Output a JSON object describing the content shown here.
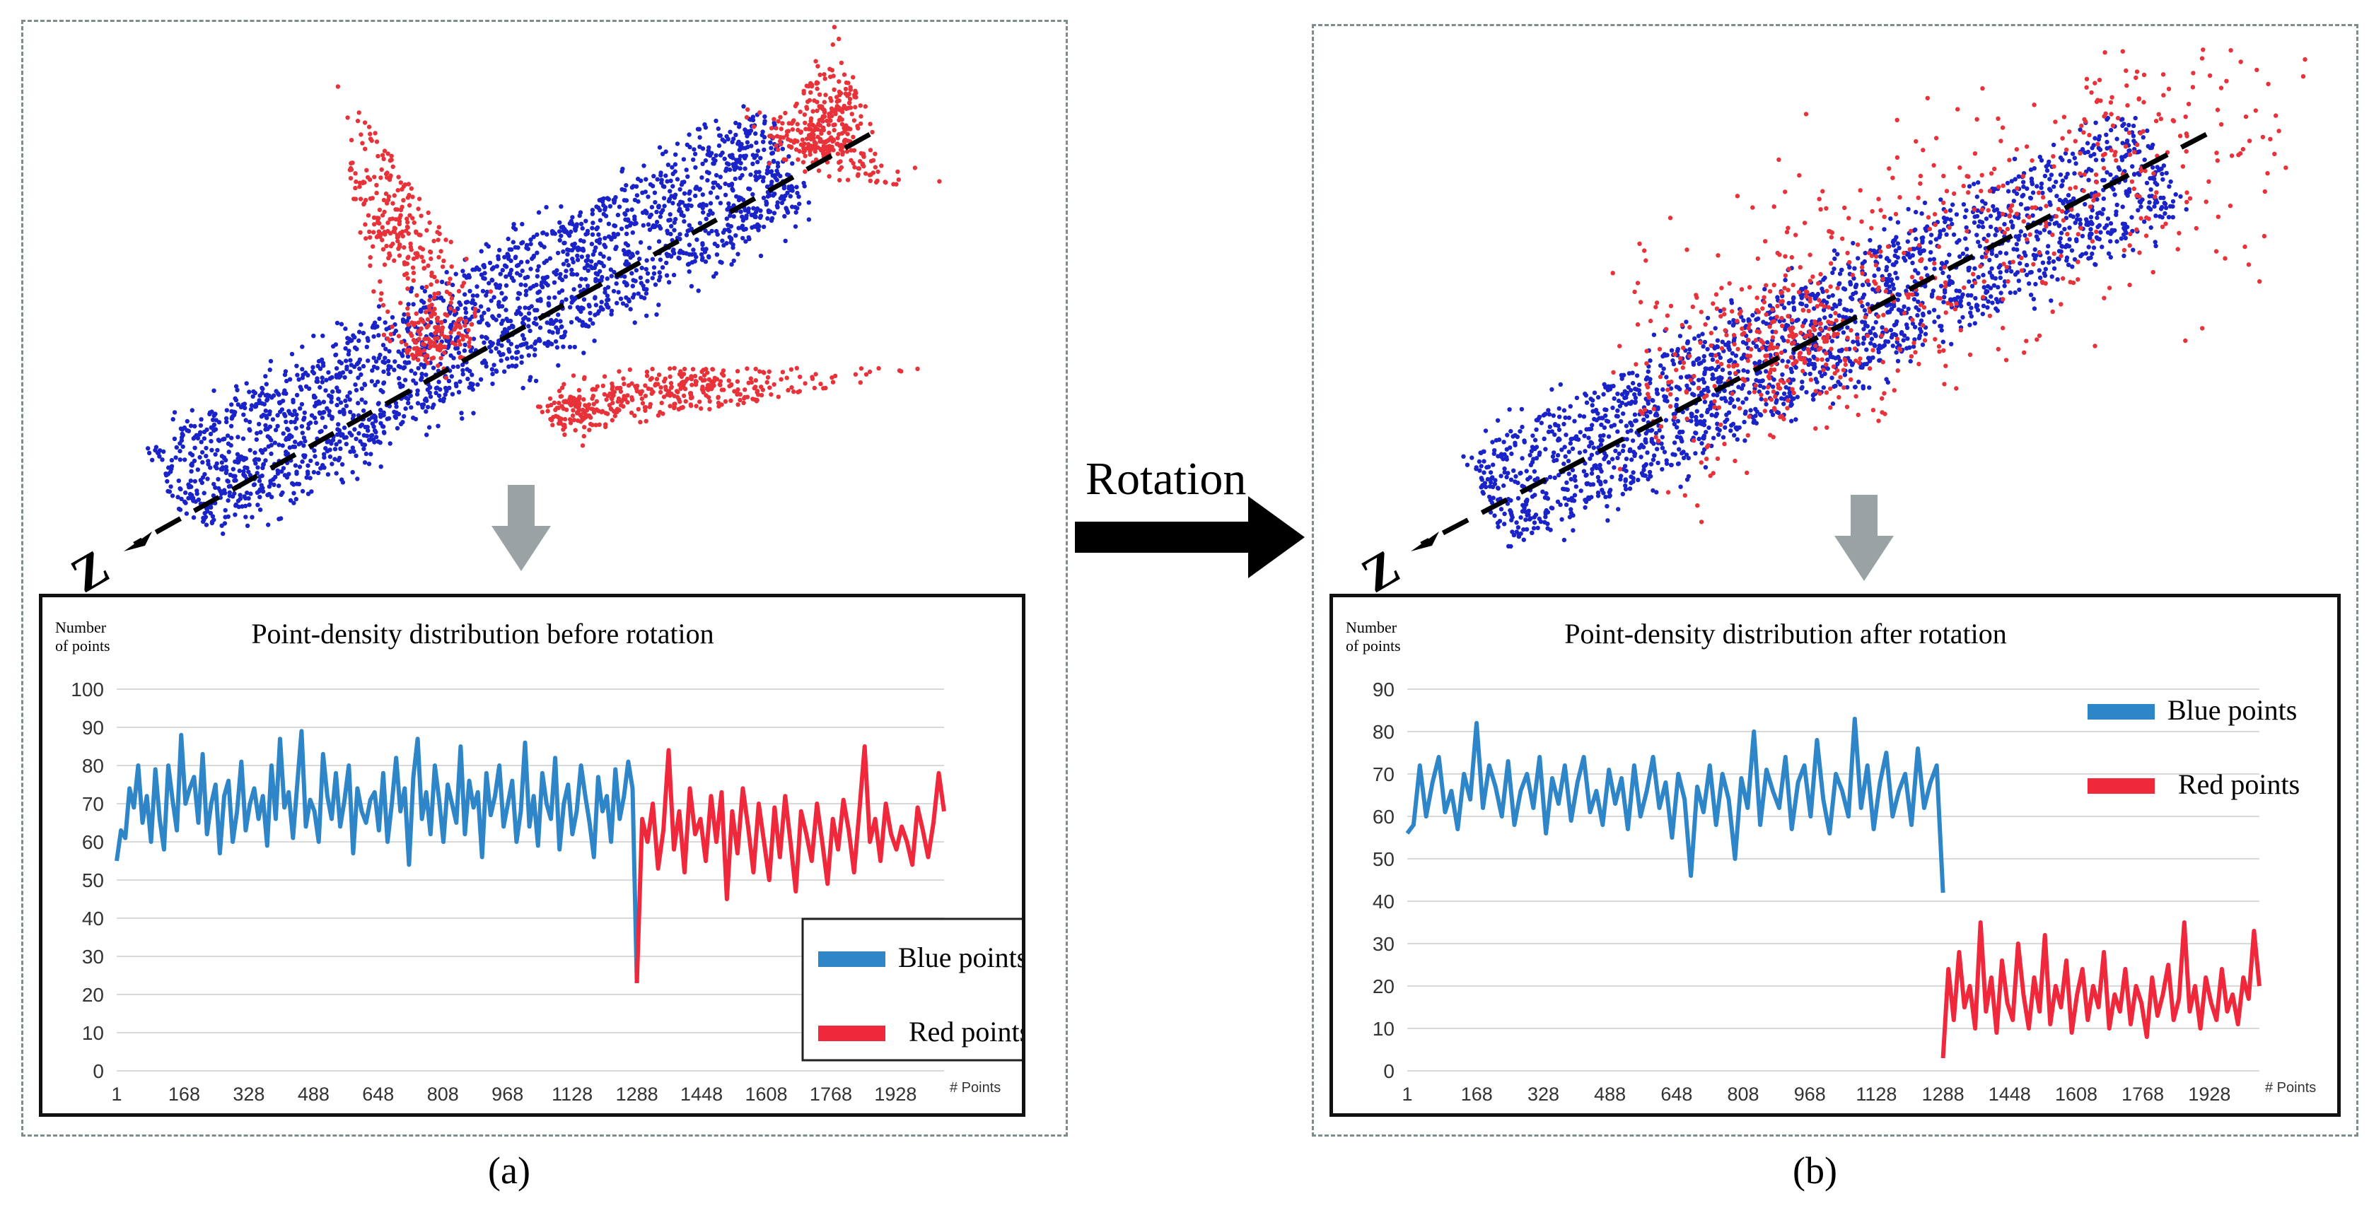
{
  "figure": {
    "rotation_label": "Rotation",
    "caption_a": "(a)",
    "caption_b": "(b)",
    "axis_letter": "Z"
  },
  "colors": {
    "blue_points": "#1a23c8",
    "red_points": "#e8323a",
    "blue_series": "#2e86c8",
    "red_series": "#f0283c",
    "down_arrow": "#9aa2a4",
    "panel_border": "#7f8c8c"
  },
  "chart_data": [
    {
      "type": "line",
      "title": "Point-density distribution before rotation",
      "ylabel": "Number of points",
      "xlabel": "# Points",
      "ylim": [
        0,
        100
      ],
      "yticks": [
        "0",
        "10",
        "20",
        "30",
        "40",
        "50",
        "60",
        "70",
        "80",
        "90",
        "100"
      ],
      "xticks": [
        "1",
        "168",
        "328",
        "488",
        "648",
        "808",
        "968",
        "1128",
        "1288",
        "1448",
        "1608",
        "1768",
        "1928"
      ],
      "xrange": [
        1,
        2048
      ],
      "legend": {
        "position": "bottom-right",
        "entries": [
          "Blue points",
          "Red points"
        ]
      },
      "series": [
        {
          "name": "Blue points",
          "x_start": 1,
          "x_end": 1288,
          "values": [
            55,
            63,
            61,
            74,
            69,
            80,
            65,
            72,
            60,
            79,
            66,
            58,
            80,
            71,
            63,
            88,
            70,
            74,
            77,
            65,
            83,
            62,
            70,
            75,
            57,
            72,
            76,
            60,
            68,
            81,
            63,
            70,
            74,
            66,
            72,
            59,
            80,
            66,
            87,
            69,
            73,
            61,
            75,
            89,
            64,
            71,
            68,
            60,
            83,
            72,
            66,
            78,
            64,
            71,
            80,
            57,
            74,
            68,
            65,
            71,
            73,
            63,
            78,
            60,
            70,
            82,
            68,
            74,
            54,
            77,
            87,
            66,
            73,
            62,
            80,
            71,
            60,
            75,
            70,
            65,
            85,
            62,
            76,
            69,
            73,
            56,
            78,
            67,
            72,
            80,
            64,
            70,
            76,
            60,
            68,
            86,
            64,
            72,
            59,
            78,
            70,
            66,
            82,
            58,
            70,
            75,
            62,
            68,
            80,
            72,
            65,
            56,
            77,
            68,
            72,
            60,
            79,
            66,
            72,
            81,
            74,
            23
          ]
        },
        {
          "name": "Red points",
          "x_start": 1288,
          "x_end": 2048,
          "values": [
            23,
            66,
            60,
            70,
            53,
            63,
            84,
            58,
            68,
            52,
            74,
            62,
            66,
            55,
            72,
            60,
            73,
            45,
            68,
            57,
            74,
            64,
            52,
            70,
            60,
            50,
            69,
            56,
            72,
            60,
            47,
            68,
            62,
            55,
            70,
            60,
            49,
            66,
            58,
            71,
            63,
            52,
            68,
            85,
            60,
            66,
            55,
            70,
            62,
            58,
            64,
            60,
            54,
            69,
            63,
            56,
            65,
            78,
            68
          ]
        }
      ]
    },
    {
      "type": "line",
      "title": "Point-density distribution after rotation",
      "ylabel": "Number of points",
      "xlabel": "# Points",
      "ylim": [
        0,
        90
      ],
      "yticks": [
        "0",
        "10",
        "20",
        "30",
        "40",
        "50",
        "60",
        "70",
        "80",
        "90"
      ],
      "xticks": [
        "1",
        "168",
        "328",
        "488",
        "648",
        "808",
        "968",
        "1128",
        "1288",
        "1448",
        "1608",
        "1768",
        "1928"
      ],
      "xrange": [
        1,
        2048
      ],
      "legend": {
        "position": "top-right",
        "entries": [
          "Blue points",
          "Red points"
        ]
      },
      "series": [
        {
          "name": "Blue points",
          "x_start": 1,
          "x_end": 1288,
          "values": [
            56,
            58,
            72,
            60,
            68,
            74,
            61,
            66,
            57,
            70,
            64,
            82,
            62,
            72,
            67,
            60,
            73,
            58,
            66,
            70,
            62,
            74,
            56,
            69,
            63,
            72,
            59,
            68,
            74,
            61,
            66,
            58,
            71,
            63,
            69,
            57,
            72,
            60,
            66,
            74,
            62,
            68,
            55,
            70,
            64,
            46,
            67,
            61,
            72,
            58,
            70,
            64,
            50,
            69,
            62,
            80,
            58,
            71,
            66,
            62,
            74,
            57,
            68,
            72,
            60,
            78,
            64,
            56,
            70,
            66,
            60,
            83,
            62,
            72,
            57,
            68,
            75,
            60,
            66,
            70,
            58,
            76,
            62,
            68,
            72,
            42
          ]
        },
        {
          "name": "Red points",
          "x_start": 1288,
          "x_end": 2048,
          "values": [
            3,
            24,
            12,
            28,
            15,
            20,
            10,
            35,
            14,
            22,
            9,
            26,
            16,
            12,
            30,
            18,
            10,
            22,
            14,
            32,
            11,
            20,
            15,
            26,
            9,
            18,
            24,
            12,
            20,
            15,
            28,
            10,
            18,
            14,
            24,
            11,
            20,
            16,
            8,
            22,
            13,
            18,
            25,
            12,
            17,
            35,
            14,
            20,
            10,
            22,
            16,
            12,
            24,
            14,
            18,
            11,
            22,
            17,
            33,
            20
          ]
        }
      ]
    }
  ]
}
